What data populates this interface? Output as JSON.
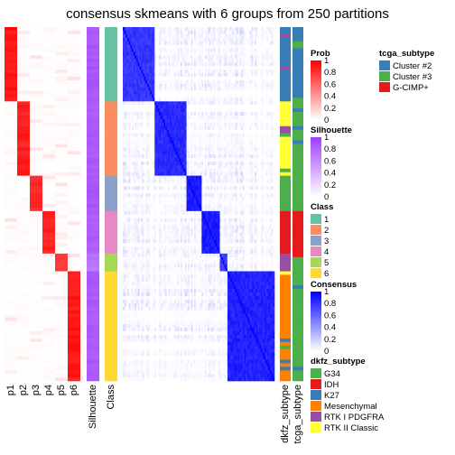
{
  "title": "consensus skmeans with 6 groups from 250 partitions",
  "chart_data": {
    "type": "heatmap",
    "n_samples": 100,
    "column_labels": [
      "p1",
      "p2",
      "p3",
      "p4",
      "p5",
      "p6",
      "Silhouette",
      "Class",
      "dkfz_subtype",
      "tcga_subtype"
    ],
    "classes_in_order": [
      1,
      2,
      3,
      4,
      5,
      6
    ],
    "class_sizes": [
      21,
      21,
      10,
      12,
      5,
      31
    ],
    "class_colors": {
      "1": "#66C2A5",
      "2": "#FC8D62",
      "3": "#8DA0CB",
      "4": "#E78AC3",
      "5": "#A6D854",
      "6": "#FFD92F"
    },
    "membership_prob_typical": {
      "1": 0.96,
      "2": 0.93,
      "3": 0.9,
      "4": 0.92,
      "5": 0.85,
      "6": 0.95
    },
    "silhouette_typical": {
      "1": 0.92,
      "2": 0.9,
      "3": 0.92,
      "4": 0.88,
      "5": 0.75,
      "6": 0.9
    },
    "consensus_within_class_typical": {
      "1": 0.85,
      "2": 0.9,
      "3": 0.95,
      "4": 0.95,
      "5": 0.8,
      "6": 0.93
    },
    "legends": [
      {
        "title": "Prob",
        "kind": "gradient",
        "colors": [
          "#FFFFFF",
          "#FF0000"
        ],
        "ticks": [
          "1",
          "0.8",
          "0.6",
          "0.4",
          "0.2",
          "0"
        ]
      },
      {
        "title": "Silhouette",
        "kind": "gradient",
        "colors": [
          "#FFFFFF",
          "#9F3EFF"
        ],
        "ticks": [
          "1",
          "0.8",
          "0.6",
          "0.4",
          "0.2",
          "0"
        ]
      },
      {
        "title": "Class",
        "kind": "discrete",
        "items": [
          {
            "label": "1",
            "color": "#66C2A5"
          },
          {
            "label": "2",
            "color": "#FC8D62"
          },
          {
            "label": "3",
            "color": "#8DA0CB"
          },
          {
            "label": "4",
            "color": "#E78AC3"
          },
          {
            "label": "5",
            "color": "#A6D854"
          },
          {
            "label": "6",
            "color": "#FFD92F"
          }
        ]
      },
      {
        "title": "Consensus",
        "kind": "gradient",
        "colors": [
          "#FFFFFF",
          "#0000FF"
        ],
        "ticks": [
          "1",
          "0.8",
          "0.6",
          "0.4",
          "0.2",
          "0"
        ]
      },
      {
        "title": "dkfz_subtype",
        "kind": "discrete",
        "items": [
          {
            "label": "G34",
            "color": "#4DAF4A"
          },
          {
            "label": "IDH",
            "color": "#E41A1C"
          },
          {
            "label": "K27",
            "color": "#377EB8"
          },
          {
            "label": "Mesenchymal",
            "color": "#FF7F00"
          },
          {
            "label": "RTK I PDGFRA",
            "color": "#984EA3"
          },
          {
            "label": "RTK II Classic",
            "color": "#FFFF33"
          }
        ]
      },
      {
        "title": "tcga_subtype",
        "kind": "discrete",
        "items": [
          {
            "label": "Cluster #2",
            "color": "#377EB8"
          },
          {
            "label": "Cluster #3",
            "color": "#4DAF4A"
          },
          {
            "label": "G-CIMP+",
            "color": "#E41A1C"
          }
        ]
      }
    ]
  }
}
